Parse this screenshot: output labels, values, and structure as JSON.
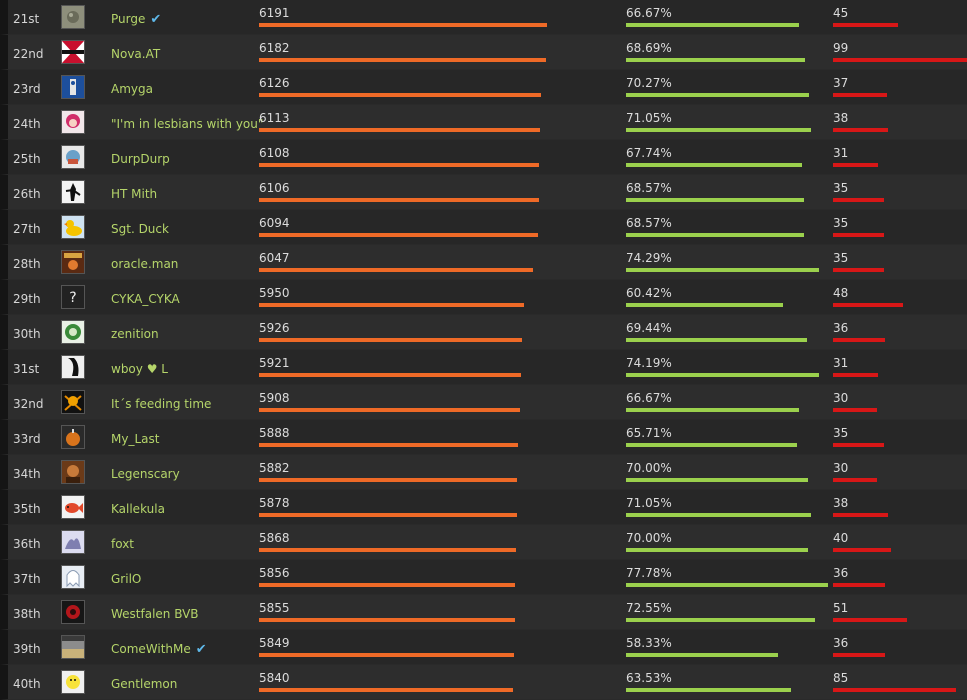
{
  "colors": {
    "rating_bar": "#ef6a27",
    "winrate_bar": "#9bd14d",
    "games_bar": "#d81717",
    "name_text": "#b5d56a",
    "verified_icon": "#5fb9ea"
  },
  "leaderboard": {
    "rows": [
      {
        "rank": "21st",
        "name": "Purge",
        "verified": true,
        "avatar": "grey-stone-icon",
        "rating": "6191",
        "rating_value": 6191,
        "winrate": "66.67%",
        "winrate_value": 66.67,
        "games": "45",
        "games_value": 45
      },
      {
        "rank": "22nd",
        "name": "Nova.AT",
        "verified": false,
        "avatar": "red-flag-icon",
        "rating": "6182",
        "rating_value": 6182,
        "winrate": "68.69%",
        "winrate_value": 68.69,
        "games": "99",
        "games_value": 99
      },
      {
        "rank": "23rd",
        "name": "Amyga",
        "verified": false,
        "avatar": "blue-banner-icon",
        "rating": "6126",
        "rating_value": 6126,
        "winrate": "70.27%",
        "winrate_value": 70.27,
        "games": "37",
        "games_value": 37
      },
      {
        "rank": "24th",
        "name": "\"I'm in lesbians with you\"",
        "verified": false,
        "avatar": "anime-girl-icon",
        "rating": "6113",
        "rating_value": 6113,
        "winrate": "71.05%",
        "winrate_value": 71.05,
        "games": "38",
        "games_value": 38
      },
      {
        "rank": "25th",
        "name": "DurpDurp",
        "verified": false,
        "avatar": "cartoon-face-icon",
        "rating": "6108",
        "rating_value": 6108,
        "winrate": "67.74%",
        "winrate_value": 67.74,
        "games": "31",
        "games_value": 31
      },
      {
        "rank": "26th",
        "name": "HT Mith",
        "verified": false,
        "avatar": "silhouette-icon",
        "rating": "6106",
        "rating_value": 6106,
        "winrate": "68.57%",
        "winrate_value": 68.57,
        "games": "35",
        "games_value": 35
      },
      {
        "rank": "27th",
        "name": "Sgt. Duck",
        "verified": false,
        "avatar": "rubber-duck-icon",
        "rating": "6094",
        "rating_value": 6094,
        "winrate": "68.57%",
        "winrate_value": 68.57,
        "games": "35",
        "games_value": 35
      },
      {
        "rank": "28th",
        "name": "oracle.man",
        "verified": false,
        "avatar": "poster-icon",
        "rating": "6047",
        "rating_value": 6047,
        "winrate": "74.29%",
        "winrate_value": 74.29,
        "games": "35",
        "games_value": 35
      },
      {
        "rank": "29th",
        "name": "CYKA_CYKA",
        "verified": false,
        "avatar": "question-mark-icon",
        "rating": "5950",
        "rating_value": 5950,
        "winrate": "60.42%",
        "winrate_value": 60.42,
        "games": "48",
        "games_value": 48
      },
      {
        "rank": "30th",
        "name": "zenition",
        "verified": false,
        "avatar": "green-emblem-icon",
        "rating": "5926",
        "rating_value": 5926,
        "winrate": "69.44%",
        "winrate_value": 69.44,
        "games": "36",
        "games_value": 36
      },
      {
        "rank": "31st",
        "name": "wboy ♥ L",
        "verified": false,
        "avatar": "dark-figure-icon",
        "rating": "5921",
        "rating_value": 5921,
        "winrate": "74.19%",
        "winrate_value": 74.19,
        "games": "31",
        "games_value": 31
      },
      {
        "rank": "32nd",
        "name": "It´s feeding time",
        "verified": false,
        "avatar": "skull-crossbones-icon",
        "rating": "5908",
        "rating_value": 5908,
        "winrate": "66.67%",
        "winrate_value": 66.67,
        "games": "30",
        "games_value": 30
      },
      {
        "rank": "33rd",
        "name": "My_Last",
        "verified": false,
        "avatar": "orange-bomb-icon",
        "rating": "5888",
        "rating_value": 5888,
        "winrate": "65.71%",
        "winrate_value": 65.71,
        "games": "35",
        "games_value": 35
      },
      {
        "rank": "34th",
        "name": "Legenscary",
        "verified": false,
        "avatar": "warrior-portrait-icon",
        "rating": "5882",
        "rating_value": 5882,
        "winrate": "70.00%",
        "winrate_value": 70.0,
        "games": "30",
        "games_value": 30
      },
      {
        "rank": "35th",
        "name": "Kallekula",
        "verified": false,
        "avatar": "red-fish-icon",
        "rating": "5878",
        "rating_value": 5878,
        "winrate": "71.05%",
        "winrate_value": 71.05,
        "games": "38",
        "games_value": 38
      },
      {
        "rank": "36th",
        "name": "foxt",
        "verified": false,
        "avatar": "sketch-creature-icon",
        "rating": "5868",
        "rating_value": 5868,
        "winrate": "70.00%",
        "winrate_value": 70.0,
        "games": "40",
        "games_value": 40
      },
      {
        "rank": "37th",
        "name": "GrilO",
        "verified": false,
        "avatar": "white-ghost-icon",
        "rating": "5856",
        "rating_value": 5856,
        "winrate": "77.78%",
        "winrate_value": 77.78,
        "games": "36",
        "games_value": 36
      },
      {
        "rank": "38th",
        "name": "Westfalen BVB",
        "verified": false,
        "avatar": "red-starburst-icon",
        "rating": "5855",
        "rating_value": 5855,
        "winrate": "72.55%",
        "winrate_value": 72.55,
        "games": "51",
        "games_value": 51
      },
      {
        "rank": "39th",
        "name": "ComeWithMe",
        "verified": true,
        "avatar": "landscape-icon",
        "rating": "5849",
        "rating_value": 5849,
        "winrate": "58.33%",
        "winrate_value": 58.33,
        "games": "36",
        "games_value": 36
      },
      {
        "rank": "40th",
        "name": "Gentlemon",
        "verified": false,
        "avatar": "yellow-head-icon",
        "rating": "5840",
        "rating_value": 5840,
        "winrate": "63.53%",
        "winrate_value": 63.53,
        "games": "85",
        "games_value": 85
      }
    ]
  }
}
